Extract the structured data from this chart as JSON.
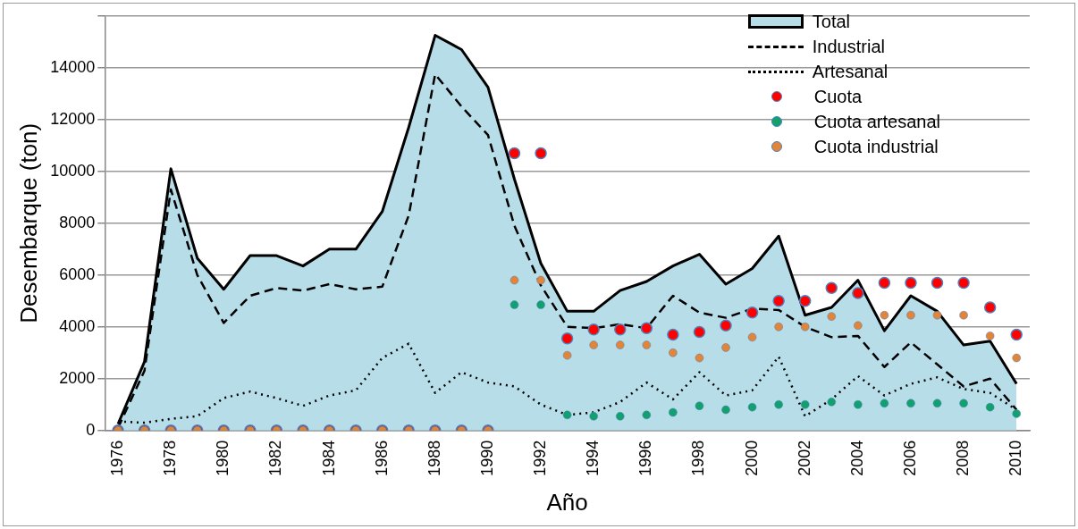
{
  "chart_data": {
    "type": "line",
    "xlabel": "Año",
    "ylabel": "Desembarque (ton)",
    "categories": [
      "1976",
      null,
      "1978",
      null,
      "1980",
      null,
      "1982",
      null,
      "1984",
      null,
      "1986",
      null,
      "1988",
      null,
      "1990",
      null,
      "1992",
      null,
      "1994",
      null,
      "1996",
      null,
      "1998",
      null,
      "2000",
      null,
      "2002",
      null,
      "2004",
      null,
      "2006",
      null,
      "2008",
      null,
      "2010"
    ],
    "ylim": [
      0,
      16000
    ],
    "yticks": [
      0,
      2000,
      4000,
      6000,
      8000,
      10000,
      12000,
      14000,
      {
        "value": 16000,
        "label": null
      }
    ],
    "grid": "y",
    "legend": "top right",
    "series": [
      {
        "name": "Total",
        "type": "area",
        "color": "#b7dde8",
        "values": [
          250,
          2650,
          10100,
          6650,
          5450,
          6750,
          6750,
          6350,
          7000,
          7000,
          8450,
          11700,
          15250,
          14700,
          13250,
          9700,
          6450,
          4600,
          4600,
          5400,
          5750,
          6350,
          6800,
          5650,
          6250,
          7500,
          4450,
          4750,
          5800,
          3850,
          5200,
          4600,
          3300,
          3450,
          1800
        ]
      },
      {
        "name": "Industrial",
        "color": "#000000",
        "line_style": "dashed",
        "marker": "none",
        "values": [
          100,
          2300,
          9300,
          6000,
          4150,
          5200,
          5500,
          5400,
          5650,
          5450,
          5550,
          8300,
          13750,
          12500,
          11400,
          7900,
          5600,
          4000,
          3950,
          4100,
          3950,
          5200,
          4550,
          4350,
          4700,
          4650,
          4000,
          3600,
          3650,
          2450,
          3400,
          2550,
          1700,
          2000,
          800
        ]
      },
      {
        "name": "Artesanal",
        "color": "#000000",
        "line_style": "dotted",
        "marker": "none",
        "values": [
          350,
          300,
          450,
          550,
          1250,
          1500,
          1250,
          950,
          1350,
          1550,
          2800,
          3350,
          1450,
          2250,
          1850,
          1700,
          1000,
          600,
          700,
          1100,
          1850,
          1200,
          2250,
          1350,
          1550,
          2850,
          550,
          1200,
          2100,
          1350,
          1800,
          2050,
          1600,
          1450,
          800
        ]
      },
      {
        "name": "Cuota",
        "type": "scatter",
        "color": "#ff0000",
        "marker": "circle",
        "values": [
          0,
          0,
          0,
          0,
          0,
          0,
          0,
          0,
          0,
          0,
          0,
          0,
          0,
          0,
          0,
          10700,
          10700,
          3550,
          3900,
          3900,
          3950,
          3700,
          3800,
          4050,
          4550,
          5000,
          5000,
          5500,
          5300,
          5700,
          5700,
          5700,
          5700,
          4750,
          3700
        ]
      },
      {
        "name": "Cuota artesanal",
        "type": "scatter",
        "color": "#12a06e",
        "marker": "circle",
        "values": [
          0,
          0,
          0,
          0,
          0,
          0,
          0,
          0,
          0,
          0,
          0,
          0,
          0,
          0,
          0,
          4850,
          4850,
          600,
          550,
          550,
          600,
          700,
          950,
          800,
          900,
          1000,
          1000,
          1100,
          1000,
          1050,
          1050,
          1050,
          1050,
          900,
          650
        ]
      },
      {
        "name": "Cuota industrial",
        "type": "scatter",
        "color": "#e0853a",
        "marker": "circle",
        "values": [
          0,
          0,
          0,
          0,
          0,
          0,
          0,
          0,
          0,
          0,
          0,
          0,
          0,
          0,
          0,
          5800,
          5800,
          2900,
          3300,
          3300,
          3300,
          3000,
          2800,
          3200,
          3600,
          4000,
          4000,
          4400,
          4050,
          4450,
          4450,
          4450,
          4450,
          3650,
          2800
        ]
      }
    ]
  }
}
